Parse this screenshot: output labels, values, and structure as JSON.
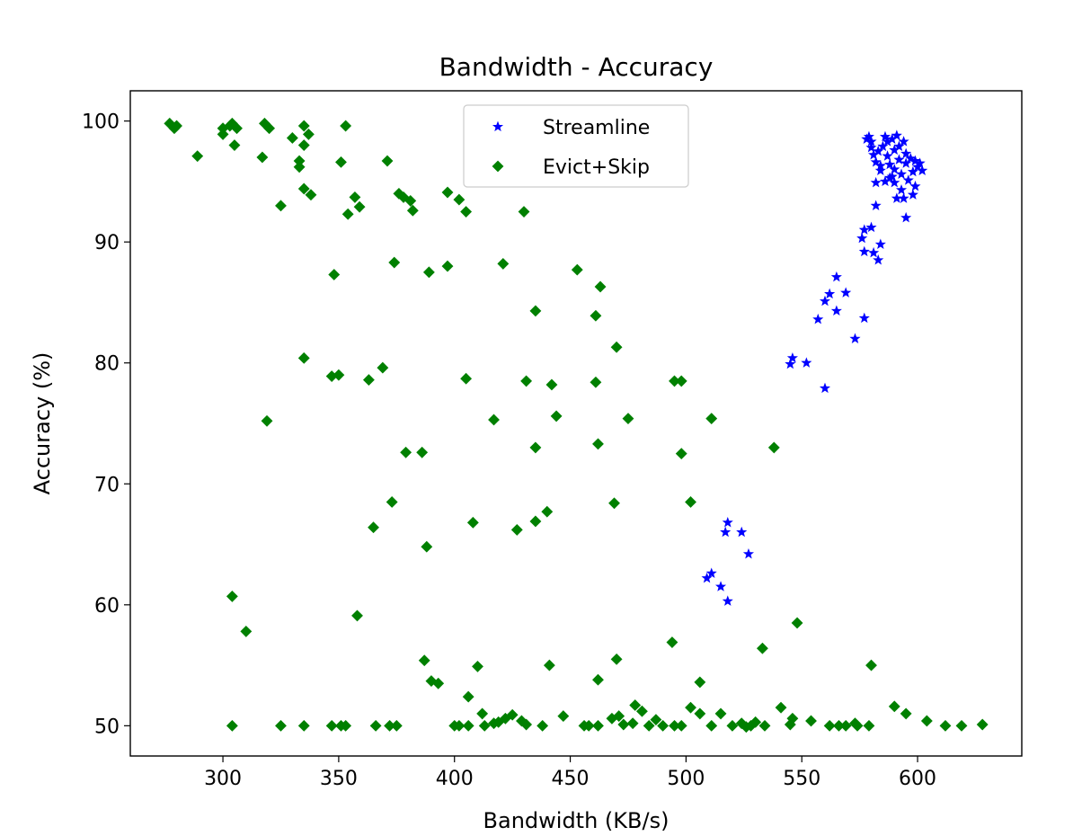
{
  "chart_data": {
    "type": "scatter",
    "title": "Bandwidth - Accuracy",
    "xlabel": "Bandwidth (KB/s)",
    "ylabel": "Accuracy (%)",
    "xlim": [
      260,
      645
    ],
    "ylim": [
      47.5,
      102.5
    ],
    "xticks": [
      300,
      350,
      400,
      450,
      500,
      550,
      600
    ],
    "yticks": [
      50,
      60,
      70,
      80,
      90,
      100
    ],
    "grid": false,
    "legend_position": "upper center",
    "series": [
      {
        "name": "Streamline",
        "color": "#0000ff",
        "marker": "star",
        "points": [
          [
            578,
            98.5
          ],
          [
            579,
            98.7
          ],
          [
            580,
            98.3
          ],
          [
            580,
            97.8
          ],
          [
            581,
            97.2
          ],
          [
            582,
            96.6
          ],
          [
            583,
            97.5
          ],
          [
            584,
            96.3
          ],
          [
            585,
            97.9
          ],
          [
            586,
            98.7
          ],
          [
            587,
            98.3
          ],
          [
            587,
            97.1
          ],
          [
            588,
            96.4
          ],
          [
            588,
            95.3
          ],
          [
            589,
            98.5
          ],
          [
            590,
            97.6
          ],
          [
            590,
            96.0
          ],
          [
            591,
            98.8
          ],
          [
            592,
            97.9
          ],
          [
            592,
            96.8
          ],
          [
            593,
            95.6
          ],
          [
            593,
            94.3
          ],
          [
            594,
            98.3
          ],
          [
            595,
            97.3
          ],
          [
            595,
            96.5
          ],
          [
            596,
            95.1
          ],
          [
            597,
            96.9
          ],
          [
            598,
            95.8
          ],
          [
            599,
            96.7
          ],
          [
            599,
            94.6
          ],
          [
            600,
            96.2
          ],
          [
            601,
            96.5
          ],
          [
            602,
            95.9
          ],
          [
            591,
            93.6
          ],
          [
            594,
            93.6
          ],
          [
            598,
            93.9
          ],
          [
            590,
            94.9
          ],
          [
            586,
            95.0
          ],
          [
            582,
            94.9
          ],
          [
            584,
            95.9
          ],
          [
            589,
            95.4
          ],
          [
            595,
            92.0
          ],
          [
            582,
            93.0
          ],
          [
            576,
            90.3
          ],
          [
            577,
            91.0
          ],
          [
            580,
            91.2
          ],
          [
            583,
            88.5
          ],
          [
            584,
            89.8
          ],
          [
            581,
            89.1
          ],
          [
            577,
            89.2
          ],
          [
            565,
            87.1
          ],
          [
            569,
            85.8
          ],
          [
            562,
            85.7
          ],
          [
            560,
            85.1
          ],
          [
            565,
            84.3
          ],
          [
            577,
            83.7
          ],
          [
            557,
            83.6
          ],
          [
            573,
            82.0
          ],
          [
            546,
            80.4
          ],
          [
            545,
            79.9
          ],
          [
            552,
            80.0
          ],
          [
            560,
            77.9
          ],
          [
            518,
            66.8
          ],
          [
            517,
            66.0
          ],
          [
            524,
            66.0
          ],
          [
            527,
            64.2
          ],
          [
            511,
            62.6
          ],
          [
            509,
            62.2
          ],
          [
            515,
            61.5
          ],
          [
            518,
            60.3
          ]
        ]
      },
      {
        "name": "Evict+Skip",
        "color": "#008000",
        "marker": "diamond",
        "points": [
          [
            277,
            99.8
          ],
          [
            279,
            99.4
          ],
          [
            280,
            99.6
          ],
          [
            300,
            99.4
          ],
          [
            300,
            98.9
          ],
          [
            303,
            99.6
          ],
          [
            304,
            99.8
          ],
          [
            306,
            99.4
          ],
          [
            318,
            99.8
          ],
          [
            320,
            99.4
          ],
          [
            335,
            99.6
          ],
          [
            353,
            99.6
          ],
          [
            330,
            98.6
          ],
          [
            335,
            98.0
          ],
          [
            337,
            98.9
          ],
          [
            305,
            98.0
          ],
          [
            289,
            97.1
          ],
          [
            317,
            97.0
          ],
          [
            333,
            96.7
          ],
          [
            333,
            96.2
          ],
          [
            351,
            96.6
          ],
          [
            371,
            96.7
          ],
          [
            335,
            94.4
          ],
          [
            338,
            93.9
          ],
          [
            357,
            93.7
          ],
          [
            325,
            93.0
          ],
          [
            359,
            92.9
          ],
          [
            354,
            92.3
          ],
          [
            376,
            94.0
          ],
          [
            378,
            93.7
          ],
          [
            381,
            93.4
          ],
          [
            382,
            92.6
          ],
          [
            397,
            94.1
          ],
          [
            402,
            93.5
          ],
          [
            405,
            92.5
          ],
          [
            430,
            92.5
          ],
          [
            374,
            88.3
          ],
          [
            348,
            87.3
          ],
          [
            389,
            87.5
          ],
          [
            397,
            88.0
          ],
          [
            421,
            88.2
          ],
          [
            453,
            87.7
          ],
          [
            463,
            86.3
          ],
          [
            435,
            84.3
          ],
          [
            461,
            83.9
          ],
          [
            470,
            81.3
          ],
          [
            335,
            80.4
          ],
          [
            347,
            78.9
          ],
          [
            350,
            79.0
          ],
          [
            363,
            78.6
          ],
          [
            369,
            79.6
          ],
          [
            405,
            78.7
          ],
          [
            431,
            78.5
          ],
          [
            442,
            78.2
          ],
          [
            461,
            78.4
          ],
          [
            495,
            78.5
          ],
          [
            498,
            78.5
          ],
          [
            319,
            75.2
          ],
          [
            417,
            75.3
          ],
          [
            444,
            75.6
          ],
          [
            475,
            75.4
          ],
          [
            511,
            75.4
          ],
          [
            379,
            72.6
          ],
          [
            386,
            72.6
          ],
          [
            435,
            73.0
          ],
          [
            462,
            73.3
          ],
          [
            498,
            72.5
          ],
          [
            538,
            73.0
          ],
          [
            373,
            68.5
          ],
          [
            365,
            66.4
          ],
          [
            408,
            66.8
          ],
          [
            427,
            66.2
          ],
          [
            435,
            66.9
          ],
          [
            440,
            67.7
          ],
          [
            469,
            68.4
          ],
          [
            502,
            68.5
          ],
          [
            388,
            64.8
          ],
          [
            304,
            60.7
          ],
          [
            310,
            57.8
          ],
          [
            358,
            59.1
          ],
          [
            548,
            58.5
          ],
          [
            494,
            56.9
          ],
          [
            533,
            56.4
          ],
          [
            387,
            55.4
          ],
          [
            390,
            53.7
          ],
          [
            393,
            53.5
          ],
          [
            410,
            54.9
          ],
          [
            441,
            55.0
          ],
          [
            462,
            53.8
          ],
          [
            470,
            55.5
          ],
          [
            506,
            53.6
          ],
          [
            580,
            55.0
          ],
          [
            406,
            52.4
          ],
          [
            412,
            51.0
          ],
          [
            478,
            51.7
          ],
          [
            481,
            51.2
          ],
          [
            502,
            51.5
          ],
          [
            515,
            51.0
          ],
          [
            541,
            51.5
          ],
          [
            590,
            51.6
          ],
          [
            595,
            51.0
          ],
          [
            304,
            50.0
          ],
          [
            325,
            50.0
          ],
          [
            335,
            50.0
          ],
          [
            347,
            50.0
          ],
          [
            351,
            50.0
          ],
          [
            353,
            50.0
          ],
          [
            366,
            50.0
          ],
          [
            372,
            50.0
          ],
          [
            375,
            50.0
          ],
          [
            400,
            50.0
          ],
          [
            402,
            50.0
          ],
          [
            406,
            50.0
          ],
          [
            413,
            50.0
          ],
          [
            417,
            50.2
          ],
          [
            419,
            50.3
          ],
          [
            422,
            50.6
          ],
          [
            425,
            50.9
          ],
          [
            429,
            50.4
          ],
          [
            431,
            50.1
          ],
          [
            438,
            50.0
          ],
          [
            447,
            50.8
          ],
          [
            456,
            50.0
          ],
          [
            458,
            50.0
          ],
          [
            462,
            50.0
          ],
          [
            468,
            50.6
          ],
          [
            471,
            50.8
          ],
          [
            473,
            50.1
          ],
          [
            477,
            50.2
          ],
          [
            484,
            50.0
          ],
          [
            487,
            50.5
          ],
          [
            490,
            50.0
          ],
          [
            495,
            50.0
          ],
          [
            498,
            50.0
          ],
          [
            506,
            51.0
          ],
          [
            511,
            50.0
          ],
          [
            520,
            50.0
          ],
          [
            524,
            50.2
          ],
          [
            526,
            49.9
          ],
          [
            528,
            50.0
          ],
          [
            530,
            50.3
          ],
          [
            534,
            50.0
          ],
          [
            545,
            50.1
          ],
          [
            546,
            50.6
          ],
          [
            554,
            50.4
          ],
          [
            562,
            50.0
          ],
          [
            566,
            50.0
          ],
          [
            569,
            50.0
          ],
          [
            573,
            50.2
          ],
          [
            574,
            50.0
          ],
          [
            579,
            50.0
          ],
          [
            604,
            50.4
          ],
          [
            612,
            50.0
          ],
          [
            619,
            50.0
          ],
          [
            628,
            50.1
          ]
        ]
      }
    ]
  }
}
